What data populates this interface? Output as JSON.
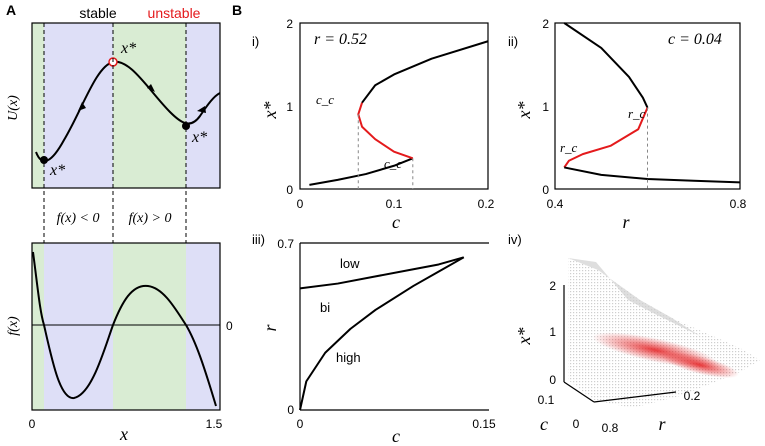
{
  "panel_labels": {
    "a": "A",
    "b": "B",
    "i": "i)",
    "ii": "ii)",
    "iii": "iii)",
    "iv": "iv)"
  },
  "colors": {
    "stable_bg": "#d9ecd3",
    "unstable_bg": "#dedff7",
    "unstable_branch": "#e41a1c",
    "stable_branch": "#000000"
  },
  "chart_data": [
    {
      "id": "A-top",
      "type": "line",
      "title": "",
      "ylabel": "U(x)",
      "header_stable": "stable",
      "header_unstable": "unstable",
      "x": [
        0.0,
        0.1,
        0.2,
        0.3,
        0.4,
        0.5,
        0.6,
        0.7,
        0.8,
        0.9,
        1.0,
        1.1,
        1.2,
        1.3
      ],
      "values": [
        0.1,
        0.18,
        0.32,
        0.48,
        0.62,
        0.74,
        0.72,
        0.63,
        0.55,
        0.44,
        0.36,
        0.28,
        0.36,
        0.5
      ],
      "equilibria": [
        {
          "x": 0.1,
          "label": "x*"
        },
        {
          "x": 0.7,
          "label": "x*"
        },
        {
          "x": 1.3,
          "label": "x*"
        }
      ],
      "region_labels": [
        "f(x) < 0",
        "f(x) > 0"
      ]
    },
    {
      "id": "A-bottom",
      "type": "line",
      "xlabel": "x",
      "ylabel": "f(x)",
      "xticks": [
        "0",
        "1.5"
      ],
      "zero_label": "0",
      "x": [
        0.0,
        0.1,
        0.2,
        0.3,
        0.4,
        0.5,
        0.6,
        0.7,
        0.8,
        0.9,
        1.0,
        1.1,
        1.2,
        1.3,
        1.4,
        1.5
      ],
      "values": [
        0.55,
        0.05,
        -0.32,
        -0.55,
        -0.62,
        -0.55,
        -0.33,
        0.0,
        0.27,
        0.37,
        0.35,
        0.22,
        0.0,
        -0.2,
        -0.42,
        -0.7
      ]
    },
    {
      "id": "B-i",
      "type": "line",
      "annotation": "r = 0.52",
      "xlabel": "c",
      "ylabel": "x*",
      "xticks": [
        "0",
        "0.1",
        "0.2"
      ],
      "yticks": [
        "0",
        "1",
        "2"
      ],
      "xlim": [
        0,
        0.2
      ],
      "ylim": [
        0,
        2
      ],
      "critical_label": "c_c",
      "lower_branch": {
        "x": [
          0.01,
          0.04,
          0.07,
          0.1,
          0.12
        ],
        "y": [
          0.05,
          0.11,
          0.18,
          0.28,
          0.37
        ]
      },
      "unstable_branch": {
        "x": [
          0.12,
          0.1,
          0.08,
          0.066,
          0.062,
          0.066
        ],
        "y": [
          0.37,
          0.45,
          0.6,
          0.75,
          0.9,
          1.04
        ]
      },
      "upper_branch": {
        "x": [
          0.066,
          0.08,
          0.1,
          0.14,
          0.2
        ],
        "y": [
          1.04,
          1.25,
          1.38,
          1.57,
          1.78
        ]
      },
      "critical_x": [
        0.062,
        0.12
      ]
    },
    {
      "id": "B-ii",
      "type": "line",
      "annotation": "c = 0.04",
      "xlabel": "r",
      "ylabel": "x*",
      "xticks": [
        "0.4",
        "0.8"
      ],
      "yticks": [
        "0",
        "1",
        "2"
      ],
      "xlim": [
        0.4,
        0.8
      ],
      "ylim": [
        0,
        2
      ],
      "critical_label": "r_c",
      "upper_branch": {
        "x": [
          0.42,
          0.5,
          0.56,
          0.59,
          0.6
        ],
        "y": [
          2.0,
          1.7,
          1.35,
          1.1,
          0.98
        ]
      },
      "unstable_branch": {
        "x": [
          0.6,
          0.58,
          0.52,
          0.46,
          0.43,
          0.42
        ],
        "y": [
          0.98,
          0.72,
          0.52,
          0.42,
          0.34,
          0.26
        ]
      },
      "lower_branch": {
        "x": [
          0.42,
          0.5,
          0.6,
          0.7,
          0.8
        ],
        "y": [
          0.26,
          0.17,
          0.12,
          0.1,
          0.08
        ]
      },
      "critical_x": [
        0.6
      ]
    },
    {
      "id": "B-iii",
      "type": "line",
      "xlabel": "c",
      "ylabel": "r",
      "xticks": [
        "0",
        "0.15"
      ],
      "yticks": [
        "0",
        "0.7"
      ],
      "xlim": [
        0,
        0.15
      ],
      "ylim": [
        0,
        0.7
      ],
      "regions": [
        "low",
        "bi",
        "high"
      ],
      "series": [
        {
          "x": [
            0,
            0.03,
            0.06,
            0.09,
            0.11,
            0.13
          ],
          "values": [
            0.51,
            0.53,
            0.56,
            0.59,
            0.61,
            0.64
          ]
        },
        {
          "x": [
            0,
            0.005,
            0.02,
            0.04,
            0.06,
            0.09,
            0.11,
            0.13
          ],
          "values": [
            0.0,
            0.12,
            0.24,
            0.34,
            0.42,
            0.52,
            0.58,
            0.64
          ]
        }
      ]
    },
    {
      "id": "B-iv",
      "type": "scatter",
      "ylabel": "x*",
      "xlabel": "r",
      "zlabel": "c",
      "zticks": [
        "0",
        "1",
        "2"
      ],
      "c_ticks": [
        "0",
        "0.1"
      ],
      "r_ticks": [
        "0.8",
        "0.2"
      ]
    }
  ]
}
